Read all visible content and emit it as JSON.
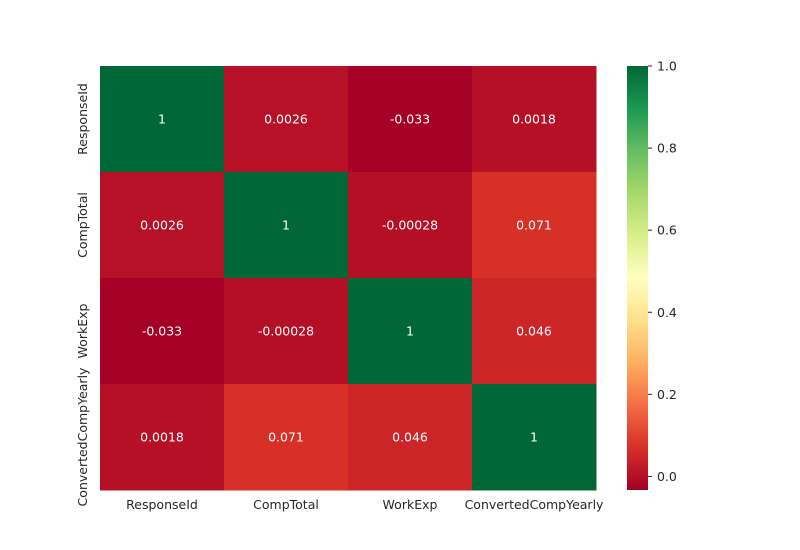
{
  "chart_data": {
    "type": "heatmap",
    "title": "",
    "xlabel": "",
    "ylabel": "",
    "x_labels": [
      "ResponseId",
      "CompTotal",
      "WorkExp",
      "ConvertedCompYearly"
    ],
    "y_labels": [
      "ResponseId",
      "CompTotal",
      "WorkExp",
      "ConvertedCompYearly"
    ],
    "values": [
      [
        1,
        0.0026,
        -0.033,
        0.0018
      ],
      [
        0.0026,
        1,
        -0.00028,
        0.071
      ],
      [
        -0.033,
        -0.00028,
        1,
        0.046
      ],
      [
        0.0018,
        0.071,
        0.046,
        1
      ]
    ],
    "value_labels": [
      [
        "1",
        "0.0026",
        "-0.033",
        "0.0018"
      ],
      [
        "0.0026",
        "1",
        "-0.00028",
        "0.071"
      ],
      [
        "-0.033",
        "-0.00028",
        "1",
        "0.046"
      ],
      [
        "0.0018",
        "0.071",
        "0.046",
        "1"
      ]
    ],
    "colormap": "RdYlGn",
    "vmin": -0.033,
    "vmax": 1.0,
    "colorbar": {
      "ticks": [
        0.0,
        0.2,
        0.4,
        0.6,
        0.8,
        1.0
      ],
      "tick_labels": [
        "0.0",
        "0.2",
        "0.4",
        "0.6",
        "0.8",
        "1.0"
      ]
    },
    "annotation_color": "#ffffff",
    "grid": false
  }
}
